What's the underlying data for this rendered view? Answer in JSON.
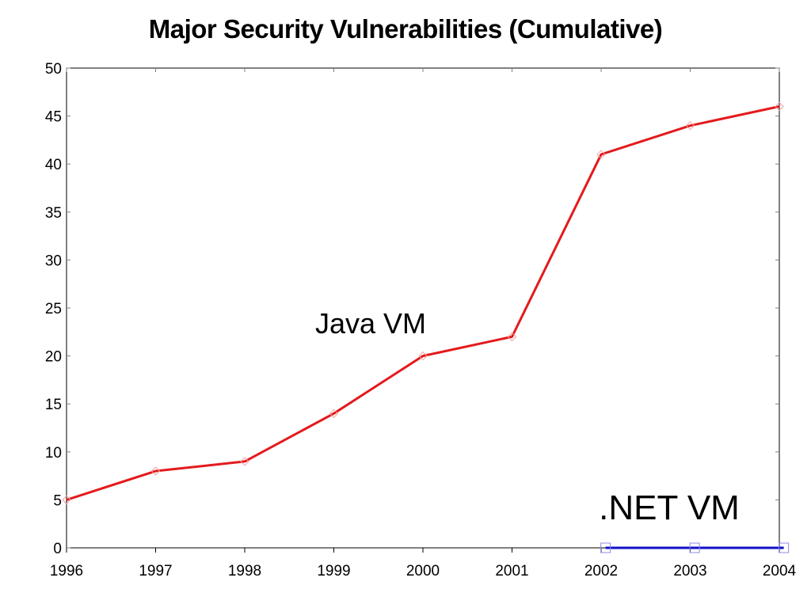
{
  "colors": {
    "java": "#e31a1c",
    "java_marker": "#f2a0a0",
    "net": "#1010c8",
    "net_marker": "#8c8ce0",
    "frame": "#000000",
    "tick_mark": "#808080"
  },
  "chart_data": {
    "type": "line",
    "title": "Major Security Vulnerabilities (Cumulative)",
    "xlabel": "",
    "ylabel": "",
    "x_ticks": [
      "1996",
      "1997",
      "1998",
      "1999",
      "2000",
      "2001",
      "2002",
      "2003",
      "2004"
    ],
    "y_ticks": [
      "0",
      "5",
      "10",
      "15",
      "20",
      "25",
      "30",
      "35",
      "40",
      "45",
      "50"
    ],
    "xlim": [
      1996,
      2004
    ],
    "ylim": [
      0,
      50
    ],
    "grid": false,
    "legend": "none",
    "series": [
      {
        "name": "Java VM",
        "marker": "diamond",
        "x": [
          1996,
          1997,
          1998,
          1999,
          2000,
          2001,
          2002,
          2003,
          2004
        ],
        "values": [
          5,
          8,
          9,
          14,
          20,
          22,
          41,
          44,
          46
        ]
      },
      {
        "name": ".NET VM",
        "marker": "square",
        "x": [
          2002.05,
          2003.05,
          2004.05
        ],
        "values": [
          0,
          0,
          0
        ]
      }
    ],
    "annotations": [
      "Java VM",
      ".NET VM"
    ]
  }
}
